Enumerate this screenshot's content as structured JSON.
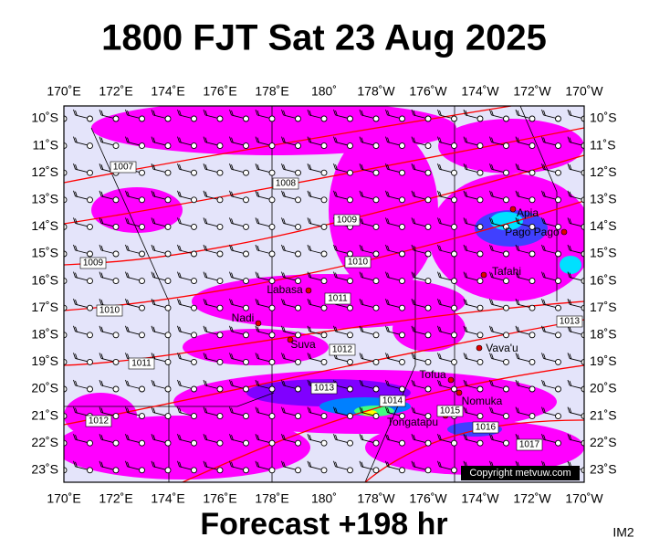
{
  "title": "1800 FJT Sat 23 Aug 2025",
  "footer": "Forecast +198 hr",
  "corner_label": "IM2",
  "copyright": "Copyright metvuw.com",
  "map": {
    "longitude_labels": [
      "170˚E",
      "172˚E",
      "174˚E",
      "176˚E",
      "178˚E",
      "180˚",
      "178˚W",
      "176˚W",
      "174˚W",
      "172˚W",
      "170˚W"
    ],
    "latitude_labels": [
      "10˚S",
      "11˚S",
      "12˚S",
      "13˚S",
      "14˚S",
      "15˚S",
      "16˚S",
      "17˚S",
      "18˚S",
      "19˚S",
      "20˚S",
      "21˚S",
      "22˚S",
      "23˚S"
    ],
    "isobar_labels": [
      1007,
      1008,
      1009,
      1009,
      1010,
      1010,
      1011,
      1011,
      1012,
      1012,
      1013,
      1013,
      1014,
      1015,
      1016,
      1017
    ],
    "places": [
      "Apia",
      "Pago Pago",
      "Tafahi",
      "Labasa",
      "Nadi",
      "Suva",
      "Vava'u",
      "Tofua",
      "Nomuka",
      "Tongatapu"
    ]
  }
}
